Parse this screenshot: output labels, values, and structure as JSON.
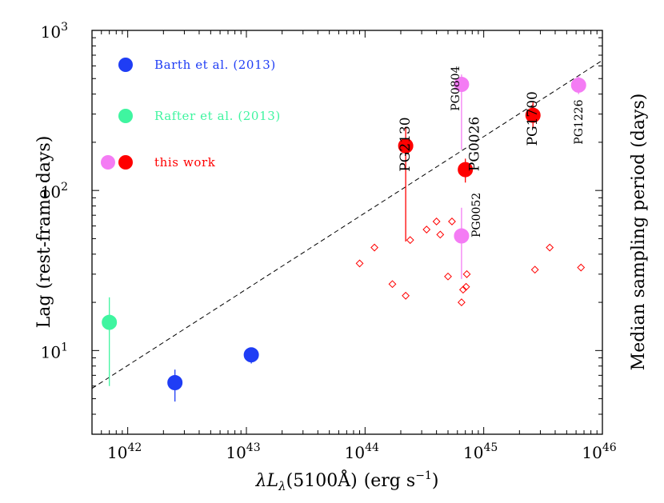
{
  "chart_data": {
    "type": "scatter",
    "xscale": "log",
    "yscale": "log",
    "xlim": [
      5e+41,
      1e+46
    ],
    "ylim": [
      3,
      1000
    ],
    "x_ticks": [
      {
        "value": 1e+42,
        "base": "10",
        "exp": "42"
      },
      {
        "value": 1e+43,
        "base": "10",
        "exp": "43"
      },
      {
        "value": 1e+44,
        "base": "10",
        "exp": "44"
      },
      {
        "value": 1e+45,
        "base": "10",
        "exp": "45"
      },
      {
        "value": 1e+46,
        "base": "10",
        "exp": "46"
      }
    ],
    "y_ticks": [
      {
        "value": 10,
        "base": "10",
        "exp": "1"
      },
      {
        "value": 100,
        "base": "10",
        "exp": "2"
      },
      {
        "value": 1000,
        "base": "10",
        "exp": "3"
      }
    ],
    "xlabel": "λL_λ(5100Å) (erg s⁻¹)",
    "xlabel_parts": {
      "lambda": "λ",
      "L": "L",
      "sub": "λ",
      "paren": "(5100Å)",
      "units": "(erg s",
      "exp": "−1",
      "close": ")"
    },
    "ylabel": "Lag (rest-frame days)",
    "ylabel_right": "Median sampling period (days)",
    "fit_line": {
      "style": "dashed",
      "x": [
        5e+41,
        1e+46
      ],
      "y": [
        5.8,
        650
      ]
    },
    "legend": [
      {
        "label": "Barth et al. (2013)",
        "color": "#1f3df5",
        "markers": [
          "#1f3df5"
        ]
      },
      {
        "label": "Rafter et al. (2013)",
        "color": "#3ff5a0",
        "markers": [
          "#3ff5a0"
        ]
      },
      {
        "label": "this work",
        "color": "#ff0000",
        "markers": [
          "#f47cf4",
          "#ff0000"
        ]
      }
    ],
    "series": [
      {
        "name": "Barth et al. (2013)",
        "color": "#1f3df5",
        "points": [
          {
            "x": 2.5e+42,
            "y": 6.3,
            "ylo": 4.8,
            "yhi": 7.6
          },
          {
            "x": 1.1e+43,
            "y": 9.4,
            "ylo": 8.3,
            "yhi": 10.4
          }
        ]
      },
      {
        "name": "Rafter et al. (2013)",
        "color": "#3ff5a0",
        "points": [
          {
            "x": 7e+41,
            "y": 15.0,
            "ylo": 6.0,
            "yhi": 21.5
          }
        ]
      },
      {
        "name": "this work (red)",
        "color": "#ff0000",
        "points": [
          {
            "x": 2.2e+44,
            "y": 190,
            "ylo": 48,
            "yhi": 250,
            "label": "PG2130"
          },
          {
            "x": 7e+44,
            "y": 135,
            "ylo": 112,
            "yhi": 158,
            "label": "PG0026"
          },
          {
            "x": 2.6e+45,
            "y": 295,
            "ylo": 245,
            "yhi": 355,
            "label": "PG1700"
          }
        ]
      },
      {
        "name": "this work (magenta)",
        "color": "#f47cf4",
        "points": [
          {
            "x": 6.5e+44,
            "y": 460,
            "ylo": 180,
            "yhi": 530,
            "label": "PG0804"
          },
          {
            "x": 6.5e+44,
            "y": 52,
            "ylo": 28,
            "yhi": 78,
            "label": "PG0052"
          },
          {
            "x": 6.3e+45,
            "y": 455,
            "ylo": 400,
            "yhi": 520,
            "label": "PG1226"
          }
        ]
      },
      {
        "name": "Median sampling period",
        "color": "#ff0000",
        "marker": "open-diamond",
        "points": [
          {
            "x": 9e+43,
            "y": 35
          },
          {
            "x": 1.2e+44,
            "y": 44
          },
          {
            "x": 1.7e+44,
            "y": 26
          },
          {
            "x": 2.2e+44,
            "y": 22
          },
          {
            "x": 2.4e+44,
            "y": 49
          },
          {
            "x": 3.3e+44,
            "y": 57
          },
          {
            "x": 4e+44,
            "y": 64
          },
          {
            "x": 4.3e+44,
            "y": 53
          },
          {
            "x": 5e+44,
            "y": 29
          },
          {
            "x": 5.4e+44,
            "y": 64
          },
          {
            "x": 6.5e+44,
            "y": 20
          },
          {
            "x": 6.7e+44,
            "y": 24
          },
          {
            "x": 7.1e+44,
            "y": 25
          },
          {
            "x": 7.2e+44,
            "y": 30
          },
          {
            "x": 2.7e+45,
            "y": 32
          },
          {
            "x": 3.6e+45,
            "y": 44
          },
          {
            "x": 6.6e+45,
            "y": 33
          }
        ]
      }
    ]
  }
}
